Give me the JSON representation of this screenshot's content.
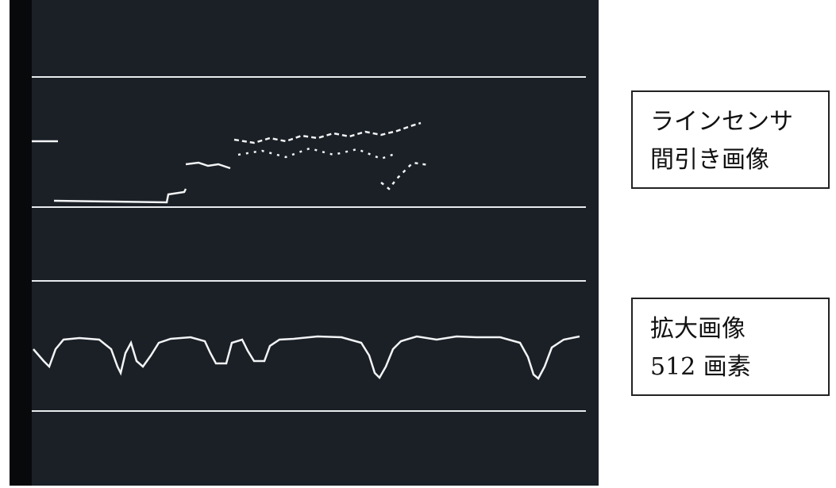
{
  "labels": [
    {
      "lines": [
        "ラインセンサ",
        "間引き画像"
      ]
    },
    {
      "lines": [
        "拡大画像",
        "512 画素"
      ]
    }
  ]
}
